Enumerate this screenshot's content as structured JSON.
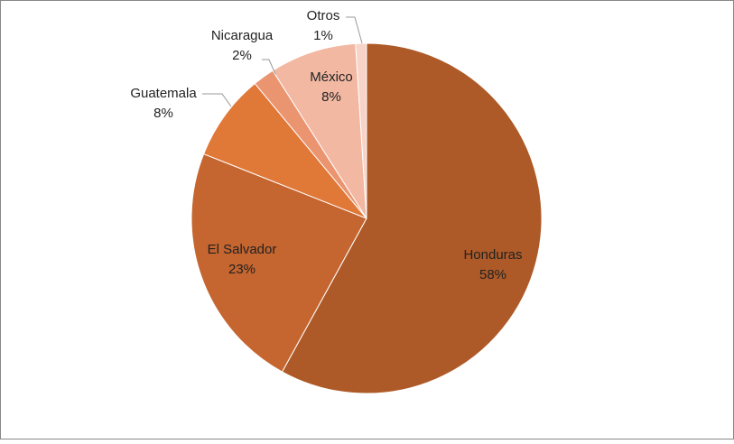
{
  "chart_data": {
    "type": "pie",
    "categories": [
      "Honduras",
      "El Salvador",
      "Guatemala",
      "Nicaragua",
      "México",
      "Otros"
    ],
    "values": [
      58,
      23,
      8,
      2,
      8,
      1
    ],
    "value_labels": [
      "58%",
      "23%",
      "8%",
      "2%",
      "8%",
      "1%"
    ],
    "colors": [
      "#ae5a28",
      "#c5652f",
      "#e07838",
      "#eb9470",
      "#f2b8a2",
      "#f8d3c8"
    ]
  }
}
